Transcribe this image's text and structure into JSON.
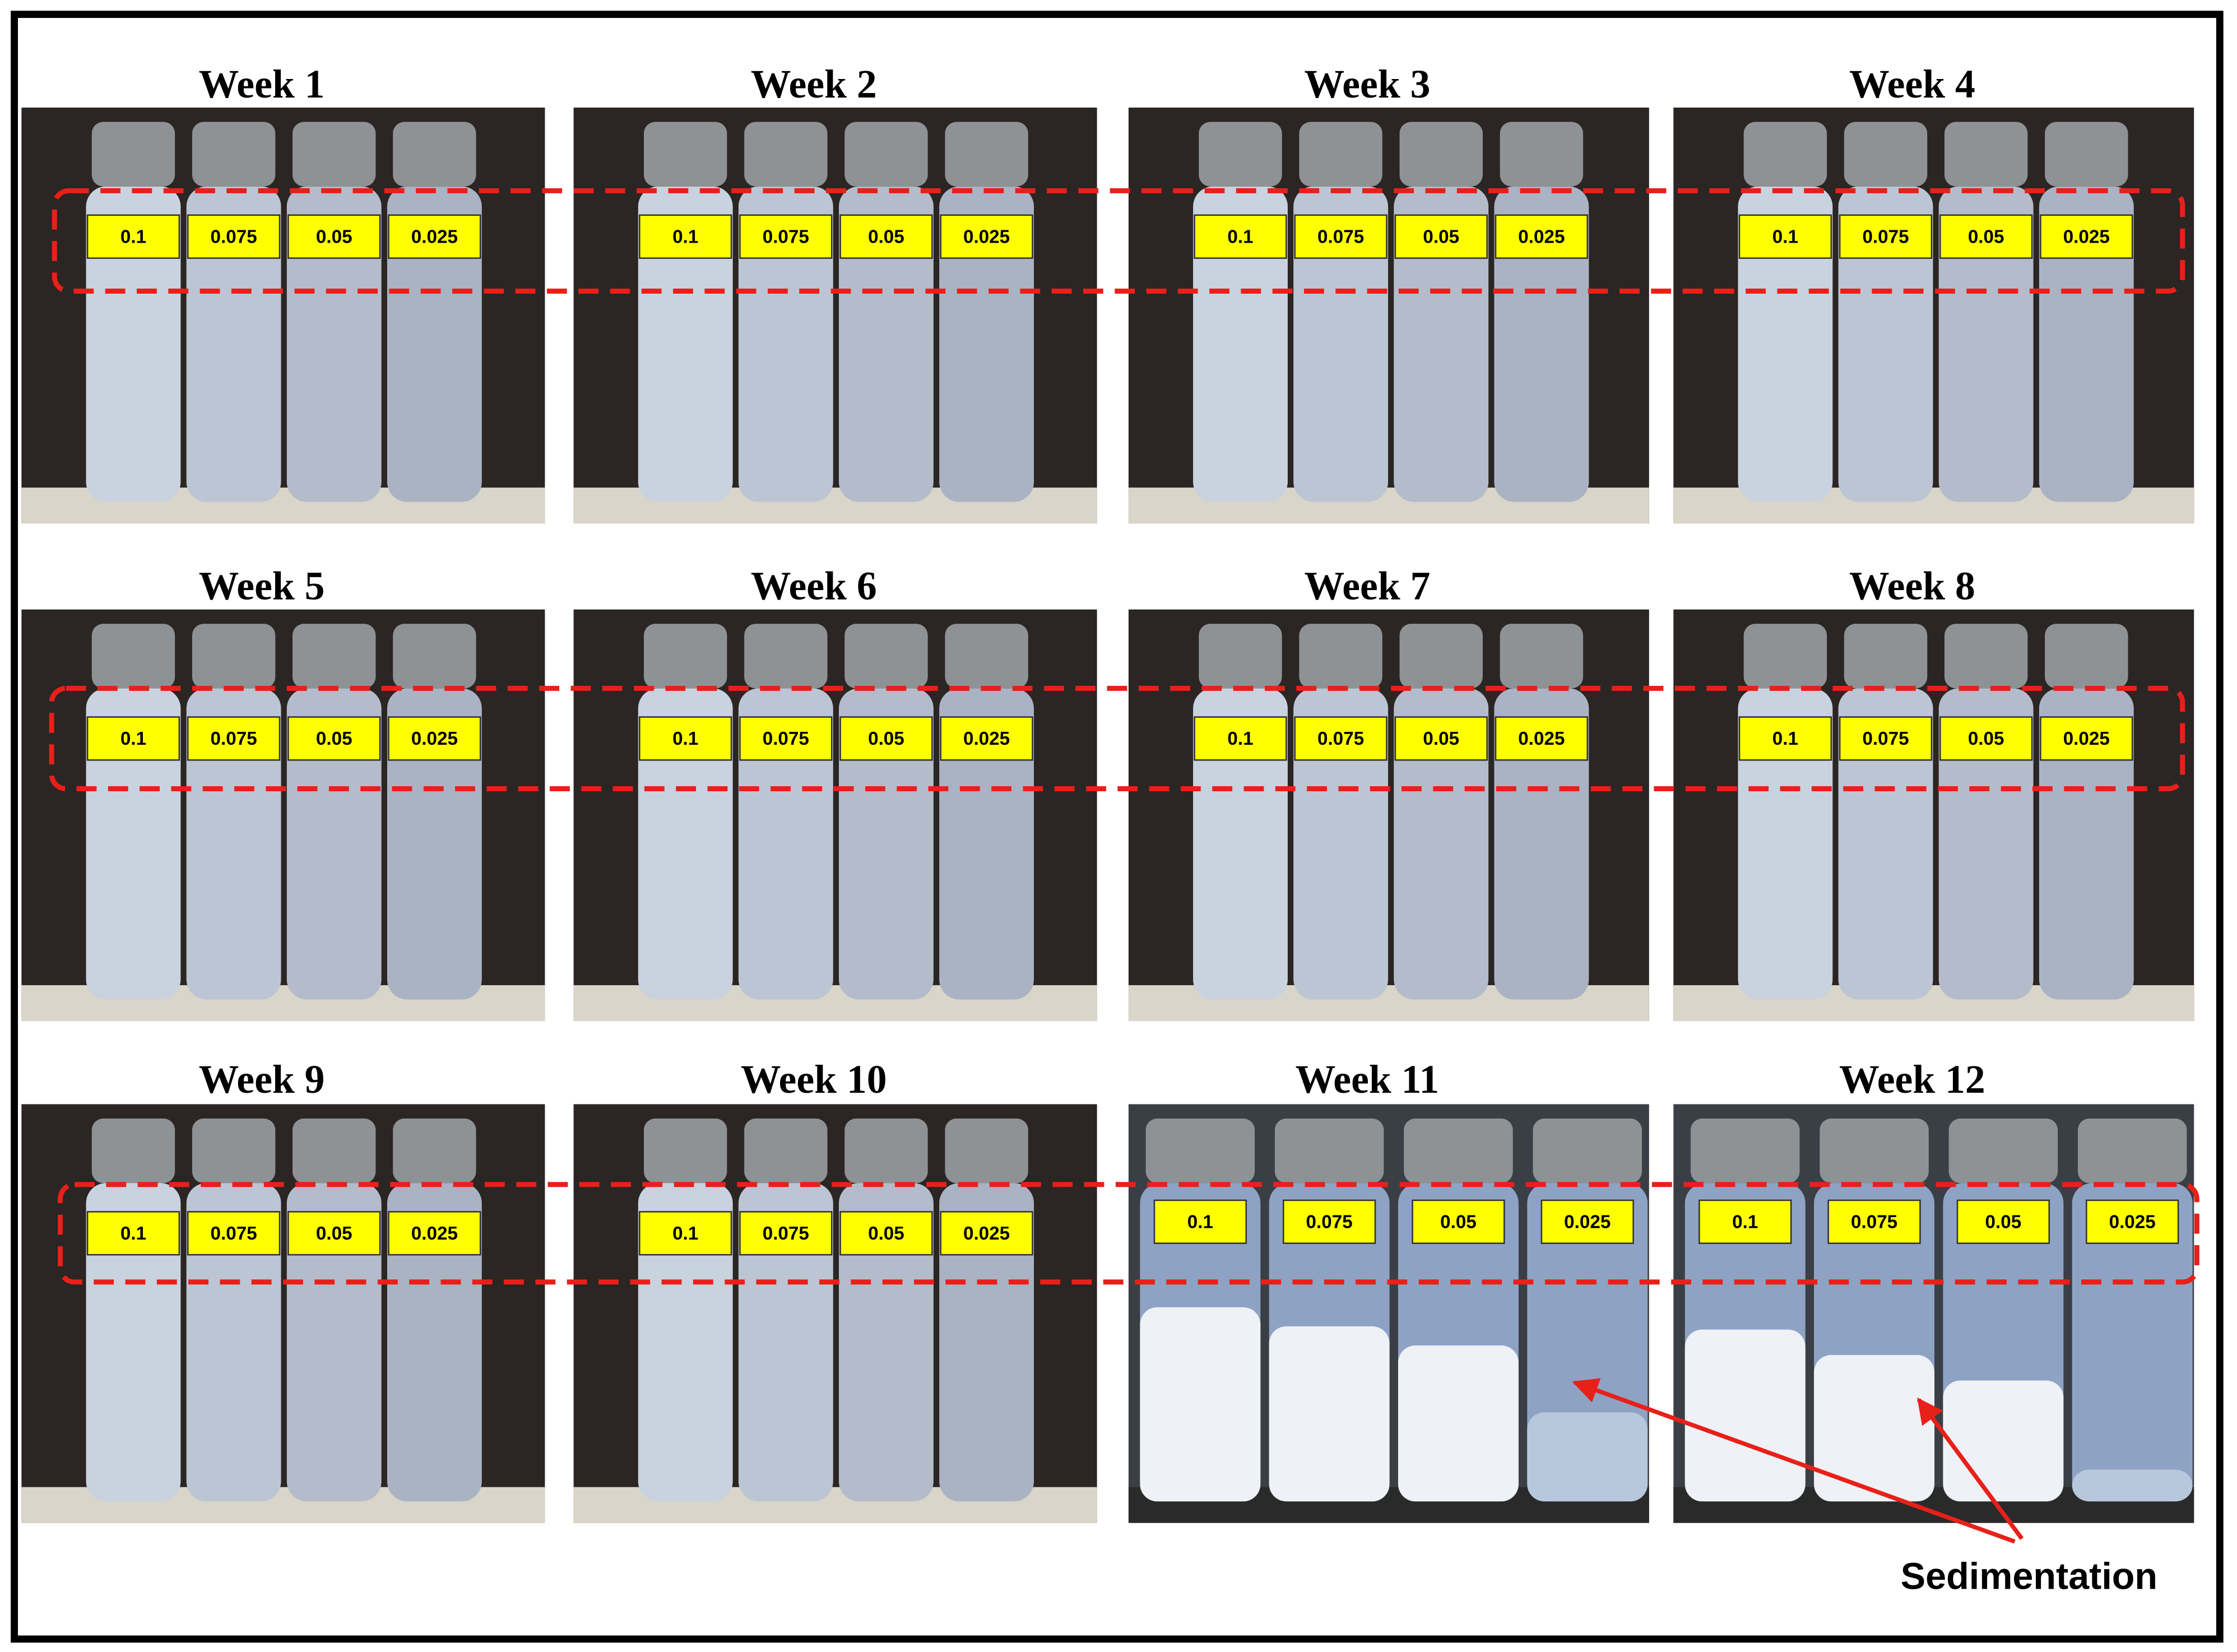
{
  "panels": [
    {
      "title": "Week 1",
      "labels": [
        "0.1",
        "0.075",
        "0.05",
        "0.025"
      ]
    },
    {
      "title": "Week 2",
      "labels": [
        "0.1",
        "0.075",
        "0.05",
        "0.025"
      ]
    },
    {
      "title": "Week 3",
      "labels": [
        "0.1",
        "0.075",
        "0.05",
        "0.025"
      ]
    },
    {
      "title": "Week 4",
      "labels": [
        "0.1",
        "0.075",
        "0.05",
        "0.025"
      ]
    },
    {
      "title": "Week 5",
      "labels": [
        "0.1",
        "0.075",
        "0.05",
        "0.025"
      ]
    },
    {
      "title": "Week 6",
      "labels": [
        "0.1",
        "0.075",
        "0.05",
        "0.025"
      ]
    },
    {
      "title": "Week 7",
      "labels": [
        "0.1",
        "0.075",
        "0.05",
        "0.025"
      ]
    },
    {
      "title": "Week 8",
      "labels": [
        "0.1",
        "0.075",
        "0.05",
        "0.025"
      ]
    },
    {
      "title": "Week 9",
      "labels": [
        "0.1",
        "0.075",
        "0.05",
        "0.025"
      ]
    },
    {
      "title": "Week 10",
      "labels": [
        "0.1",
        "0.075",
        "0.05",
        "0.025"
      ]
    },
    {
      "title": "Week 11",
      "labels": [
        "0.1",
        "0.075",
        "0.05",
        "0.025"
      ]
    },
    {
      "title": "Week 12",
      "labels": [
        "0.1",
        "0.075",
        "0.05",
        "0.025"
      ]
    }
  ],
  "annotation": "Sedimentation"
}
